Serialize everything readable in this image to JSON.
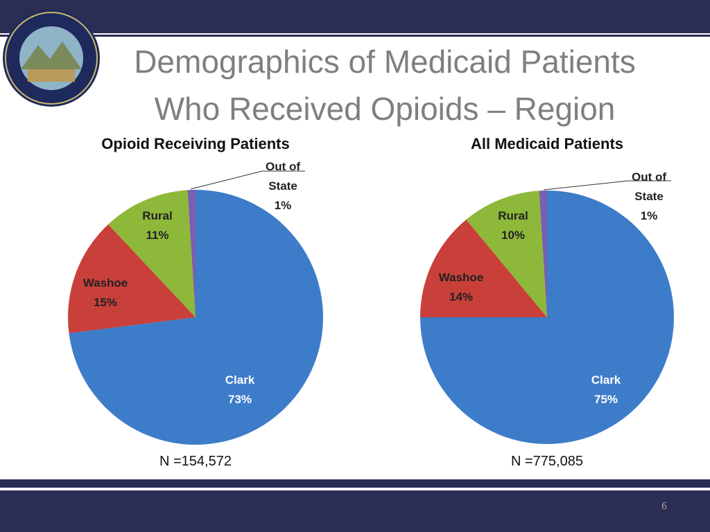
{
  "slide": {
    "title_lines": [
      "Demographics of Medicaid Patients",
      "Who Received Opioids – Region"
    ],
    "page_number": "6"
  },
  "chart_data": [
    {
      "type": "pie",
      "title": "Opioid Receiving Patients",
      "note": "N =154,572",
      "categories": [
        "Clark",
        "Washoe",
        "Rural",
        "Out of State"
      ],
      "values": [
        73,
        15,
        11,
        1
      ],
      "value_labels": [
        "73%",
        "15%",
        "11%",
        "1%"
      ],
      "colors": [
        "#3d7cc9",
        "#c9403a",
        "#8db83a",
        "#7a5fb0"
      ]
    },
    {
      "type": "pie",
      "title": "All Medicaid Patients",
      "note": "N =775,085",
      "categories": [
        "Clark",
        "Washoe",
        "Rural",
        "Out of State"
      ],
      "values": [
        75,
        14,
        10,
        1
      ],
      "value_labels": [
        "75%",
        "14%",
        "10%",
        "1%"
      ],
      "colors": [
        "#3d7cc9",
        "#c9403a",
        "#8db83a",
        "#7a5fb0"
      ]
    }
  ]
}
